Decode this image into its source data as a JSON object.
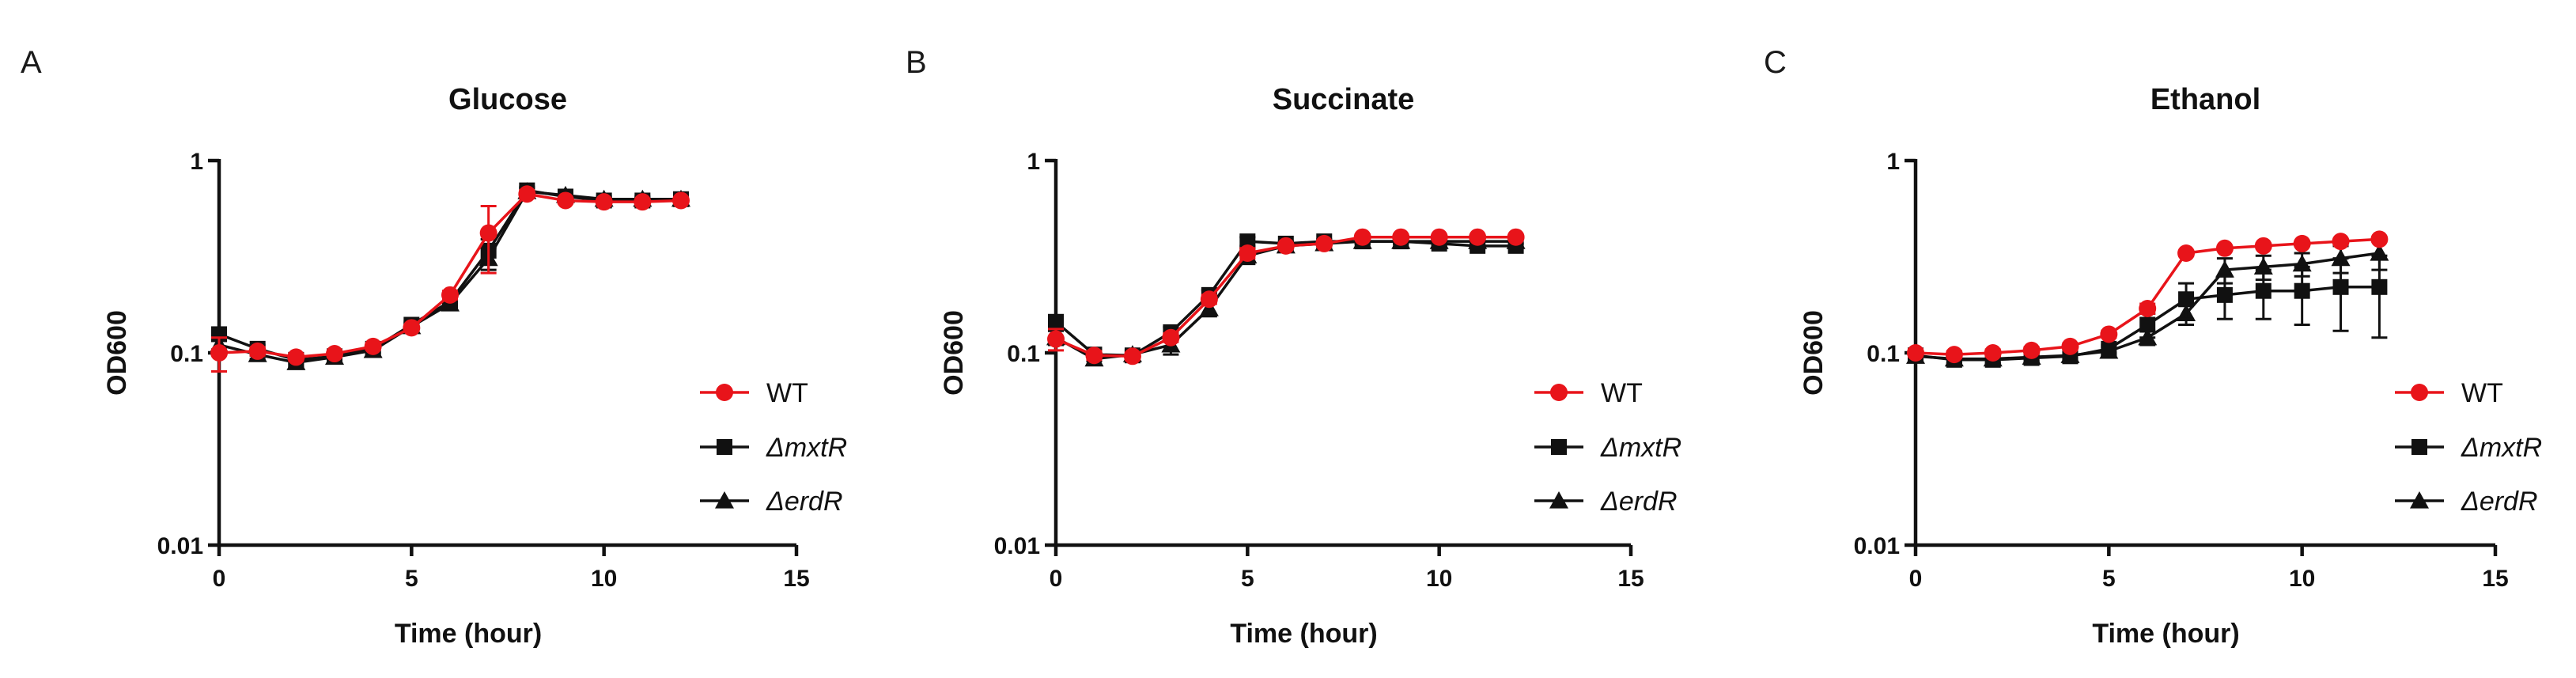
{
  "figure": {
    "panels": [
      "A",
      "B",
      "C"
    ]
  },
  "colors": {
    "wt": "#e8141a",
    "mutant": "#111111"
  },
  "chart_data": [
    {
      "type": "line",
      "panel": "A",
      "title": "Glucose",
      "xlabel": "Time (hour)",
      "ylabel": "OD600",
      "xlim": [
        0,
        15
      ],
      "ylim": [
        0.01,
        1
      ],
      "yscale": "log",
      "xticks": [
        "0",
        "5",
        "10",
        "15"
      ],
      "yticks": [
        "1",
        "0.1",
        "0.01"
      ],
      "legend_position": "right",
      "x": [
        0,
        1,
        2,
        3,
        4,
        5,
        6,
        7,
        8,
        9,
        10,
        11,
        12
      ],
      "series": [
        {
          "name": "WT",
          "label_prefix": "",
          "label_italic": "WT",
          "marker": "circle",
          "color": "#e8141a",
          "values": [
            0.1,
            0.102,
            0.095,
            0.099,
            0.108,
            0.135,
            0.2,
            0.42,
            0.67,
            0.62,
            0.61,
            0.61,
            0.62
          ],
          "errors": [
            0.02,
            0.005,
            0.004,
            0.004,
            0.004,
            0.005,
            0.01,
            0.16,
            0.03,
            0.02,
            0.02,
            0.02,
            0.02
          ]
        },
        {
          "name": "ΔmxtR",
          "label_prefix": "Δ",
          "label_italic": "mxtR",
          "marker": "square",
          "color": "#111111",
          "values": [
            0.125,
            0.105,
            0.092,
            0.096,
            0.105,
            0.14,
            0.185,
            0.34,
            0.7,
            0.65,
            0.62,
            0.62,
            0.63
          ],
          "errors": [
            0.008,
            0.005,
            0.004,
            0.004,
            0.004,
            0.005,
            0.01,
            0.05,
            0.03,
            0.03,
            0.02,
            0.02,
            0.02
          ]
        },
        {
          "name": "ΔerdR",
          "label_prefix": "Δ",
          "label_italic": "erdR",
          "marker": "triangle",
          "color": "#111111",
          "values": [
            0.11,
            0.098,
            0.089,
            0.095,
            0.103,
            0.137,
            0.18,
            0.31,
            0.69,
            0.66,
            0.63,
            0.63,
            0.63
          ],
          "errors": [
            0.006,
            0.005,
            0.004,
            0.004,
            0.004,
            0.005,
            0.01,
            0.04,
            0.03,
            0.02,
            0.02,
            0.02,
            0.02
          ]
        }
      ]
    },
    {
      "type": "line",
      "panel": "B",
      "title": "Succinate",
      "xlabel": "Time (hour)",
      "ylabel": "OD600",
      "xlim": [
        0,
        15
      ],
      "ylim": [
        0.01,
        1
      ],
      "yscale": "log",
      "xticks": [
        "0",
        "5",
        "10",
        "15"
      ],
      "yticks": [
        "1",
        "0.1",
        "0.01"
      ],
      "legend_position": "right",
      "x": [
        0,
        1,
        2,
        3,
        4,
        5,
        6,
        7,
        8,
        9,
        10,
        11,
        12
      ],
      "series": [
        {
          "name": "WT",
          "label_prefix": "",
          "label_italic": "WT",
          "marker": "circle",
          "color": "#e8141a",
          "values": [
            0.118,
            0.097,
            0.096,
            0.12,
            0.19,
            0.33,
            0.36,
            0.37,
            0.4,
            0.4,
            0.4,
            0.4,
            0.4
          ],
          "errors": [
            0.015,
            0.005,
            0.004,
            0.006,
            0.01,
            0.02,
            0.01,
            0.01,
            0.01,
            0.01,
            0.01,
            0.01,
            0.01
          ]
        },
        {
          "name": "ΔmxtR",
          "label_prefix": "Δ",
          "label_italic": "mxtR",
          "marker": "square",
          "color": "#111111",
          "values": [
            0.145,
            0.098,
            0.097,
            0.128,
            0.2,
            0.38,
            0.37,
            0.38,
            0.38,
            0.38,
            0.37,
            0.36,
            0.36
          ],
          "errors": [
            0.008,
            0.005,
            0.004,
            0.008,
            0.012,
            0.02,
            0.01,
            0.01,
            0.01,
            0.01,
            0.01,
            0.01,
            0.01
          ]
        },
        {
          "name": "ΔerdR",
          "label_prefix": "Δ",
          "label_italic": "erdR",
          "marker": "triangle",
          "color": "#111111",
          "values": [
            0.12,
            0.093,
            0.098,
            0.11,
            0.17,
            0.32,
            0.36,
            0.37,
            0.38,
            0.38,
            0.38,
            0.38,
            0.38
          ],
          "errors": [
            0.01,
            0.006,
            0.005,
            0.012,
            0.015,
            0.03,
            0.01,
            0.01,
            0.01,
            0.01,
            0.01,
            0.01,
            0.01
          ]
        }
      ]
    },
    {
      "type": "line",
      "panel": "C",
      "title": "Ethanol",
      "xlabel": "Time (hour)",
      "ylabel": "OD600",
      "xlim": [
        0,
        15
      ],
      "ylim": [
        0.01,
        1
      ],
      "yscale": "log",
      "xticks": [
        "0",
        "5",
        "10",
        "15"
      ],
      "yticks": [
        "1",
        "0.1",
        "0.01"
      ],
      "legend_position": "right",
      "x": [
        0,
        1,
        2,
        3,
        4,
        5,
        6,
        7,
        8,
        9,
        10,
        11,
        12
      ],
      "series": [
        {
          "name": "WT",
          "label_prefix": "",
          "label_italic": "WT",
          "marker": "circle",
          "color": "#e8141a",
          "values": [
            0.1,
            0.098,
            0.1,
            0.103,
            0.108,
            0.125,
            0.17,
            0.33,
            0.35,
            0.36,
            0.37,
            0.38,
            0.39
          ],
          "errors": [
            0.004,
            0.004,
            0.004,
            0.004,
            0.004,
            0.005,
            0.01,
            0.01,
            0.01,
            0.01,
            0.01,
            0.01,
            0.01
          ]
        },
        {
          "name": "ΔmxtR",
          "label_prefix": "Δ",
          "label_italic": "mxtR",
          "marker": "square",
          "color": "#111111",
          "values": [
            0.097,
            0.092,
            0.092,
            0.094,
            0.096,
            0.105,
            0.14,
            0.19,
            0.2,
            0.21,
            0.21,
            0.22,
            0.22
          ],
          "errors": [
            0.004,
            0.004,
            0.004,
            0.004,
            0.004,
            0.005,
            0.02,
            0.04,
            0.05,
            0.06,
            0.07,
            0.09,
            0.1
          ]
        },
        {
          "name": "ΔerdR",
          "label_prefix": "Δ",
          "label_italic": "erdR",
          "marker": "triangle",
          "color": "#111111",
          "values": [
            0.096,
            0.093,
            0.093,
            0.095,
            0.097,
            0.102,
            0.12,
            0.16,
            0.27,
            0.28,
            0.29,
            0.31,
            0.33
          ],
          "errors": [
            0.004,
            0.004,
            0.004,
            0.004,
            0.004,
            0.005,
            0.01,
            0.02,
            0.04,
            0.04,
            0.04,
            0.05,
            0.06
          ]
        }
      ]
    }
  ]
}
